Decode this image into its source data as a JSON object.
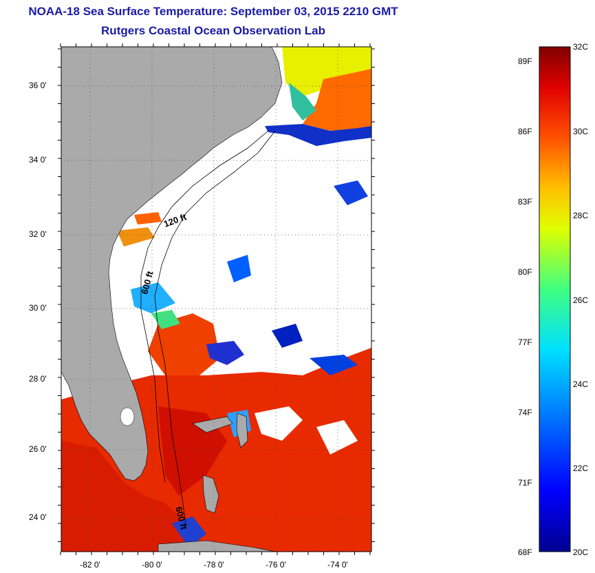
{
  "title_line1": "NOAA-18 Sea Surface Temperature:  September 03, 2015 2210 GMT",
  "title_line2": "Rutgers Coastal Ocean Observation Lab",
  "lat_ticks": [
    "36 0'",
    "34 0'",
    "32 0'",
    "30 0'",
    "28 0'",
    "26 0'",
    "24 0'"
  ],
  "lon_ticks": [
    "-82 0'",
    "-80 0'",
    "-78 0'",
    "-76 0'",
    "-74 0'"
  ],
  "contour_labels": [
    "120 ft",
    "600 ft",
    "600 ft"
  ],
  "colorbar": {
    "fahrenheit_labels": [
      "89F",
      "86F",
      "83F",
      "80F",
      "77F",
      "74F",
      "71F",
      "68F"
    ],
    "celsius_labels": [
      "32C",
      "30C",
      "28C",
      "26C",
      "24C",
      "22C",
      "20C"
    ],
    "min_c": 20,
    "max_c": 32
  },
  "colors": {
    "land": "#aaaaaa",
    "cloud": "#ffffff",
    "title": "#1a1aa6"
  }
}
